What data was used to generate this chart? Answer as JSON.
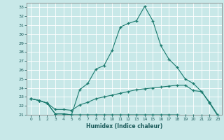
{
  "xlabel": "Humidex (Indice chaleur)",
  "bg_color": "#c8e8e8",
  "grid_color": "#b0d0d0",
  "line_color": "#1a7a6e",
  "xlim": [
    -0.5,
    23.5
  ],
  "ylim": [
    21,
    33.5
  ],
  "yticks": [
    21,
    22,
    23,
    24,
    25,
    26,
    27,
    28,
    29,
    30,
    31,
    32,
    33
  ],
  "xtick_labels": [
    "0",
    "1",
    "2",
    "3",
    "4",
    "5",
    "6",
    "7",
    "8",
    "9",
    "10",
    "11",
    "12",
    "13",
    "14",
    "15",
    "16",
    "17",
    "18",
    "19",
    "20",
    "21",
    "22",
    "23"
  ],
  "xtick_pos": [
    0,
    1,
    2,
    3,
    4,
    5,
    6,
    7,
    8,
    9,
    10,
    11,
    12,
    13,
    14,
    15,
    16,
    17,
    18,
    19,
    20,
    21,
    22,
    23
  ],
  "line1_x": [
    0,
    1,
    2,
    3,
    4,
    5,
    6,
    7,
    8,
    9,
    10,
    11,
    12,
    13,
    14,
    15,
    16,
    17,
    18,
    19,
    20,
    21,
    22,
    23
  ],
  "line1_y": [
    22.8,
    22.6,
    22.3,
    21.1,
    21.1,
    21.0,
    23.8,
    24.5,
    26.1,
    26.5,
    28.2,
    30.8,
    31.2,
    31.5,
    33.1,
    31.5,
    28.7,
    27.2,
    26.3,
    25.0,
    24.5,
    23.6,
    22.3,
    20.9
  ],
  "line2_x": [
    0,
    1,
    2,
    3,
    4,
    5,
    6,
    7,
    8,
    9,
    10,
    11,
    12,
    13,
    14,
    15,
    16,
    17,
    18,
    19,
    20,
    21,
    22,
    23
  ],
  "line2_y": [
    22.8,
    22.6,
    22.3,
    21.1,
    21.1,
    21.0,
    21.0,
    21.0,
    21.0,
    21.0,
    21.0,
    21.0,
    21.0,
    21.0,
    21.0,
    21.0,
    21.0,
    21.0,
    21.0,
    20.9,
    20.9,
    20.9,
    20.9,
    20.9
  ],
  "line3_x": [
    0,
    1,
    2,
    3,
    4,
    5,
    6,
    7,
    8,
    9,
    10,
    11,
    12,
    13,
    14,
    15,
    16,
    17,
    18,
    19,
    20,
    21,
    22,
    23
  ],
  "line3_y": [
    22.8,
    22.6,
    22.3,
    21.6,
    21.6,
    21.5,
    22.1,
    22.4,
    22.8,
    23.0,
    23.2,
    23.4,
    23.6,
    23.8,
    23.9,
    24.0,
    24.1,
    24.2,
    24.3,
    24.3,
    23.7,
    23.6,
    22.4,
    21.0
  ]
}
